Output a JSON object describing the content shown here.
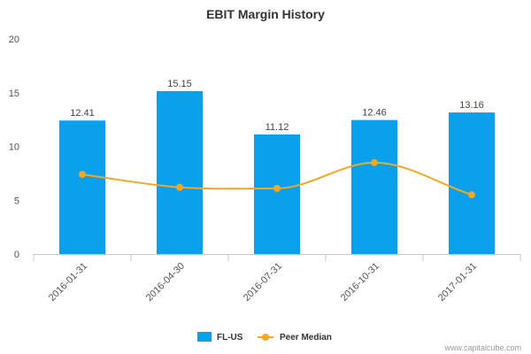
{
  "chart_data": {
    "type": "bar",
    "title": "EBIT Margin History",
    "xlabel": "",
    "ylabel": "",
    "ylim": [
      0,
      20
    ],
    "yticks": [
      0,
      5,
      10,
      15,
      20
    ],
    "categories": [
      "2016-01-31",
      "2016-04-30",
      "2016-07-31",
      "2016-10-31",
      "2017-01-31"
    ],
    "series": [
      {
        "name": "FL-US",
        "type": "bar",
        "color": "#0aa0ec",
        "values": [
          12.41,
          15.15,
          11.12,
          12.46,
          13.16
        ],
        "labels": [
          "12.41",
          "15.15",
          "11.12",
          "12.46",
          "13.16"
        ]
      },
      {
        "name": "Peer Median",
        "type": "line",
        "smooth": true,
        "color": "#f5a623",
        "values": [
          7.4,
          6.2,
          6.1,
          8.5,
          5.5
        ]
      }
    ],
    "grid": false,
    "legend_position": "bottom-center"
  },
  "credit": "www.capitalcube.com"
}
